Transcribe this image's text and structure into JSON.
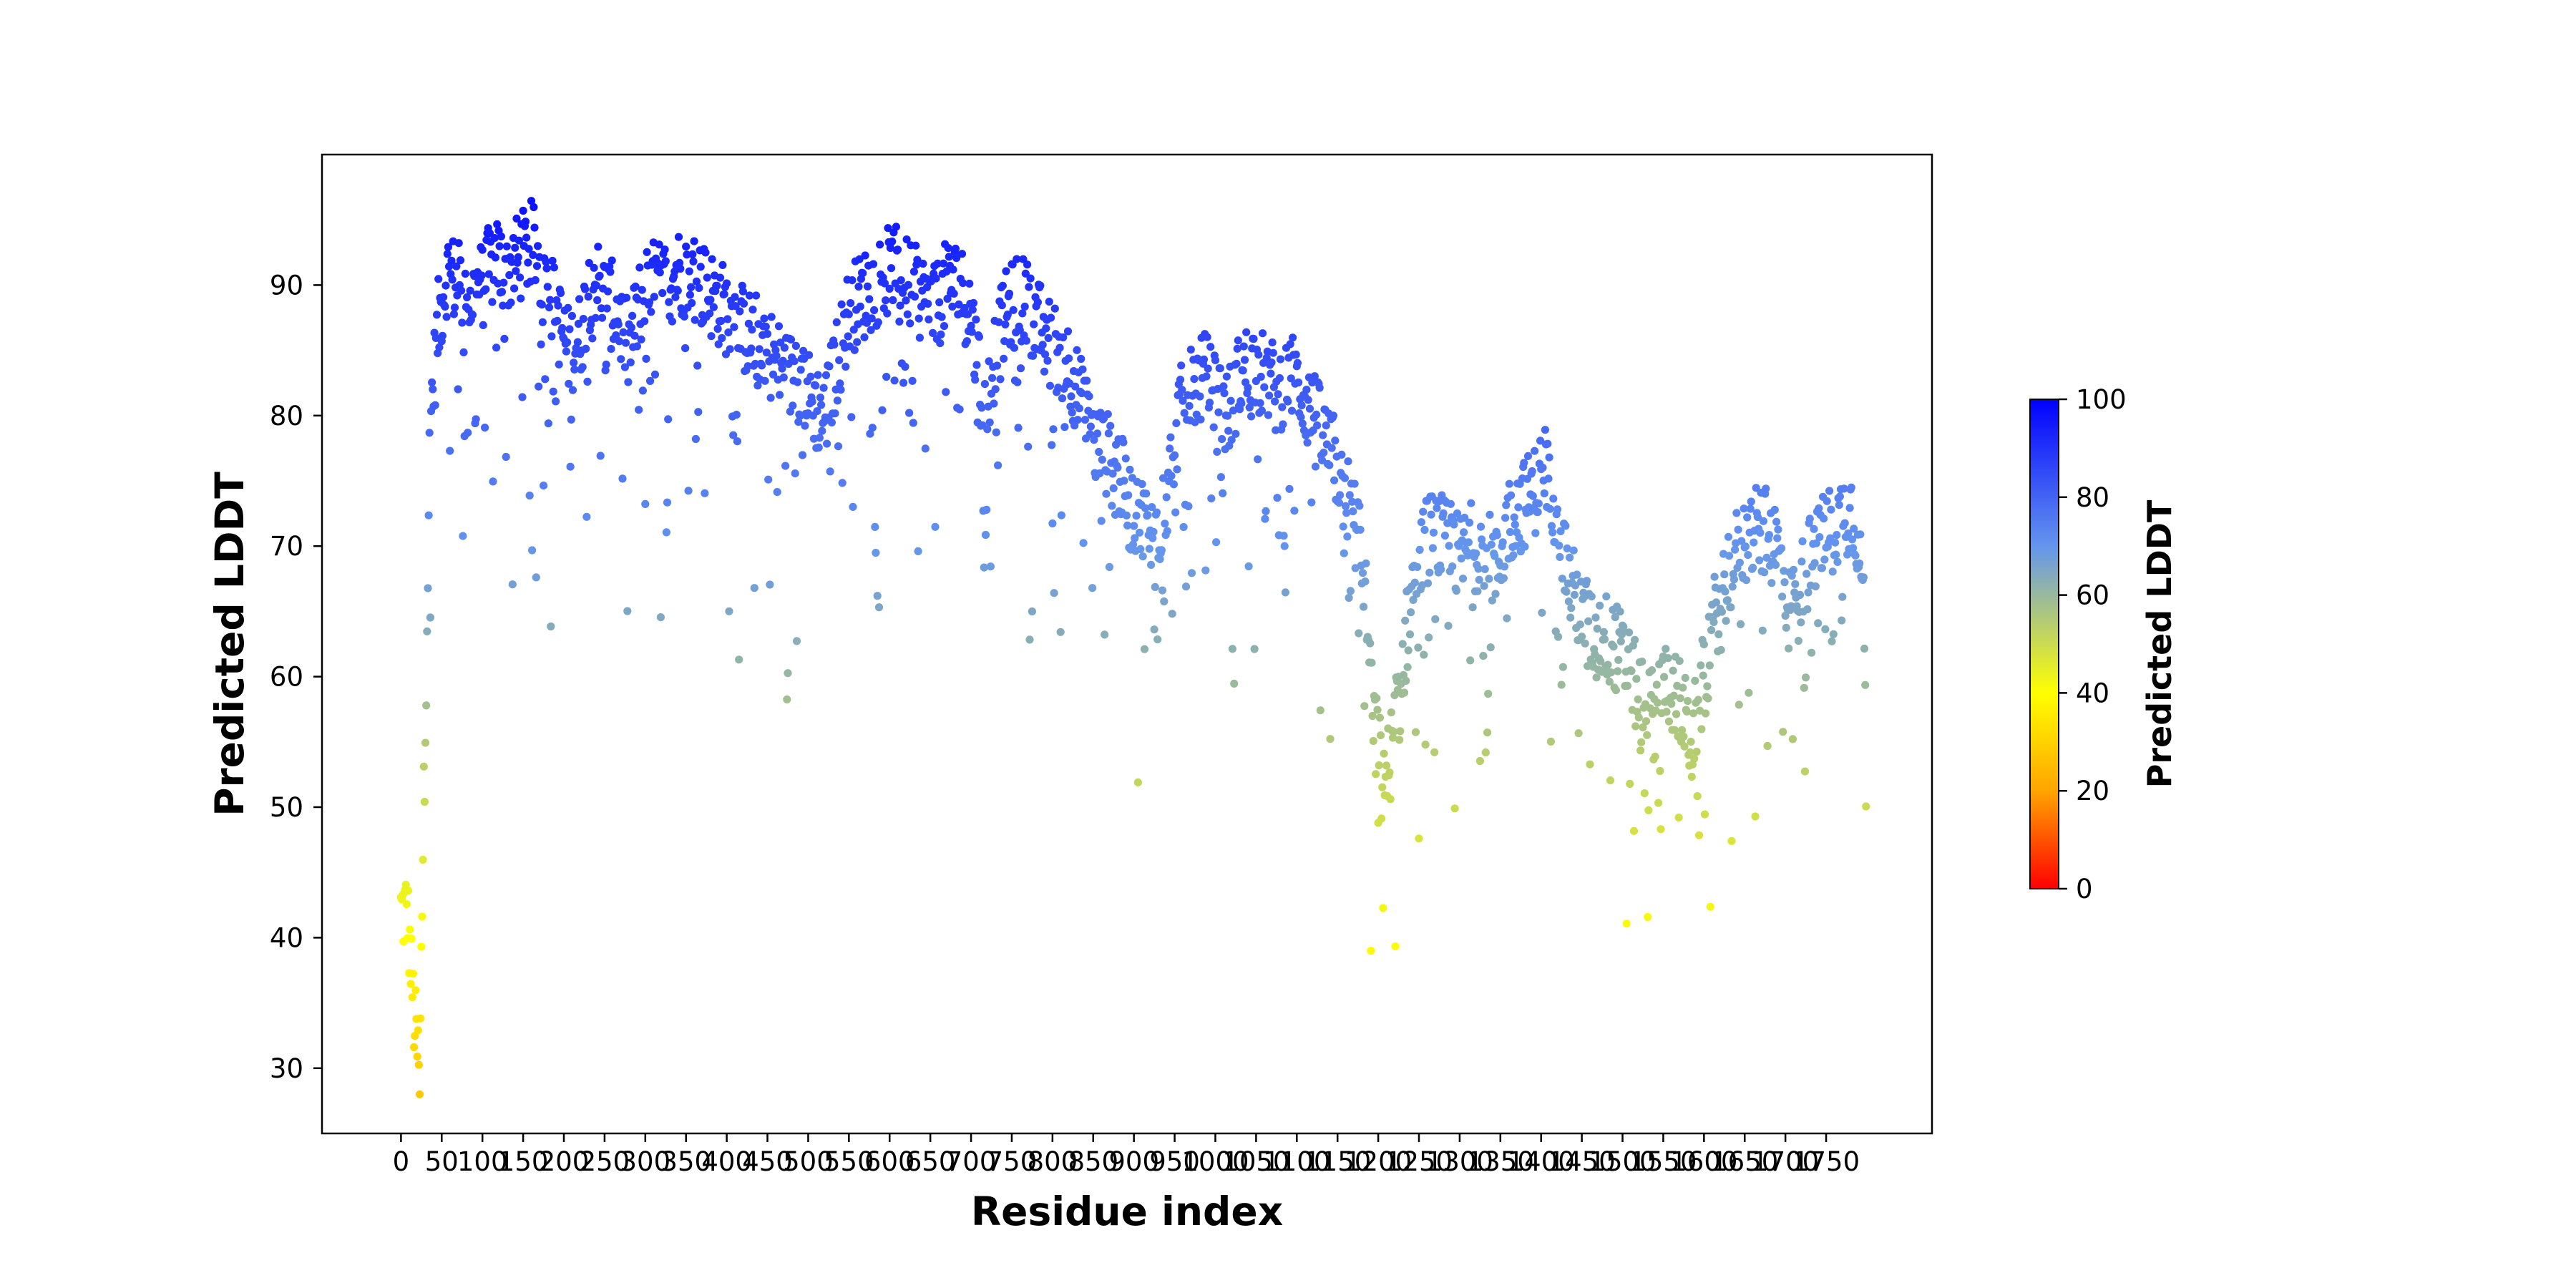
{
  "chart_data": {
    "type": "scatter",
    "title": "",
    "xlabel": "Residue index",
    "ylabel": "Predicted LDDT",
    "xlim": [
      -97,
      1880
    ],
    "ylim": [
      25,
      100
    ],
    "grid": false,
    "x_ticks": [
      0,
      50,
      100,
      150,
      200,
      250,
      300,
      350,
      400,
      450,
      500,
      550,
      600,
      650,
      700,
      750,
      800,
      850,
      900,
      950,
      1000,
      1050,
      1100,
      1150,
      1200,
      1250,
      1300,
      1350,
      1400,
      1450,
      1500,
      1550,
      1600,
      1650,
      1700,
      1750
    ],
    "x_tick_labels": [
      "0",
      "50",
      "100",
      "150",
      "200",
      "250",
      "300",
      "350",
      "400",
      "450",
      "500",
      "550",
      "600",
      "650",
      "700",
      "750",
      "800",
      "850",
      "900",
      "950",
      "1000",
      "1050",
      "1100",
      "1150",
      "1200",
      "1250",
      "1300",
      "1350",
      "1400",
      "1450",
      "1500",
      "1550",
      "1600",
      "1650",
      "1700",
      "1750"
    ],
    "y_ticks": [
      30,
      40,
      50,
      60,
      70,
      80,
      90
    ],
    "colorbar": {
      "label": "Predicted LDDT",
      "min": 0,
      "max": 100,
      "ticks": [
        0,
        20,
        40,
        60,
        80,
        100
      ],
      "colors": [
        "#ff0000",
        "#ffa500",
        "#ffff00",
        "#6495ed",
        "#0000ff"
      ],
      "stops": [
        0,
        0.2,
        0.4,
        0.7,
        1.0
      ],
      "legend_position": "right"
    },
    "series": [
      {
        "residue_range": [
          0,
          1799
        ],
        "profile": [
          [
            0,
            42
          ],
          [
            8,
            42
          ],
          [
            16,
            34
          ],
          [
            22,
            30
          ],
          [
            28,
            50
          ],
          [
            36,
            80
          ],
          [
            46,
            87
          ],
          [
            56,
            91
          ],
          [
            70,
            90
          ],
          [
            85,
            89
          ],
          [
            100,
            90
          ],
          [
            115,
            92
          ],
          [
            130,
            91
          ],
          [
            145,
            92
          ],
          [
            160,
            93
          ],
          [
            175,
            91
          ],
          [
            190,
            88
          ],
          [
            205,
            85
          ],
          [
            220,
            86
          ],
          [
            235,
            91
          ],
          [
            250,
            89
          ],
          [
            265,
            88
          ],
          [
            280,
            85
          ],
          [
            295,
            89
          ],
          [
            310,
            90
          ],
          [
            325,
            90
          ],
          [
            340,
            91
          ],
          [
            355,
            91
          ],
          [
            370,
            90
          ],
          [
            385,
            89
          ],
          [
            400,
            88
          ],
          [
            415,
            87
          ],
          [
            430,
            86
          ],
          [
            445,
            86
          ],
          [
            460,
            84
          ],
          [
            475,
            83
          ],
          [
            490,
            83
          ],
          [
            505,
            81
          ],
          [
            520,
            80
          ],
          [
            535,
            84
          ],
          [
            550,
            88
          ],
          [
            565,
            89
          ],
          [
            580,
            90
          ],
          [
            595,
            91
          ],
          [
            610,
            91
          ],
          [
            625,
            90
          ],
          [
            640,
            89
          ],
          [
            655,
            88
          ],
          [
            670,
            90
          ],
          [
            685,
            90
          ],
          [
            700,
            88
          ],
          [
            715,
            80
          ],
          [
            730,
            85
          ],
          [
            745,
            88
          ],
          [
            760,
            89
          ],
          [
            775,
            88
          ],
          [
            790,
            86
          ],
          [
            805,
            85
          ],
          [
            820,
            84
          ],
          [
            835,
            81
          ],
          [
            850,
            78
          ],
          [
            865,
            77
          ],
          [
            880,
            76
          ],
          [
            895,
            73
          ],
          [
            910,
            72
          ],
          [
            925,
            70
          ],
          [
            940,
            74
          ],
          [
            955,
            80
          ],
          [
            970,
            82
          ],
          [
            985,
            83
          ],
          [
            1000,
            82
          ],
          [
            1015,
            80
          ],
          [
            1030,
            83
          ],
          [
            1045,
            84
          ],
          [
            1060,
            83
          ],
          [
            1075,
            82
          ],
          [
            1090,
            83
          ],
          [
            1105,
            82
          ],
          [
            1120,
            80
          ],
          [
            1135,
            78
          ],
          [
            1150,
            76
          ],
          [
            1165,
            73
          ],
          [
            1180,
            70
          ],
          [
            1195,
            56
          ],
          [
            1210,
            52
          ],
          [
            1225,
            58
          ],
          [
            1240,
            66
          ],
          [
            1255,
            70
          ],
          [
            1270,
            71
          ],
          [
            1285,
            70
          ],
          [
            1300,
            69
          ],
          [
            1315,
            70
          ],
          [
            1330,
            70
          ],
          [
            1345,
            68
          ],
          [
            1360,
            72
          ],
          [
            1375,
            73
          ],
          [
            1390,
            74
          ],
          [
            1405,
            76
          ],
          [
            1420,
            73
          ],
          [
            1435,
            67
          ],
          [
            1450,
            65
          ],
          [
            1465,
            63
          ],
          [
            1480,
            63
          ],
          [
            1495,
            62
          ],
          [
            1510,
            60
          ],
          [
            1525,
            58
          ],
          [
            1540,
            57
          ],
          [
            1555,
            60
          ],
          [
            1570,
            58
          ],
          [
            1585,
            55
          ],
          [
            1600,
            60
          ],
          [
            1615,
            65
          ],
          [
            1630,
            68
          ],
          [
            1645,
            70
          ],
          [
            1660,
            71
          ],
          [
            1675,
            71
          ],
          [
            1690,
            70
          ],
          [
            1705,
            65
          ],
          [
            1720,
            67
          ],
          [
            1735,
            70
          ],
          [
            1750,
            71
          ],
          [
            1765,
            72
          ],
          [
            1780,
            73
          ],
          [
            1795,
            70
          ],
          [
            1799,
            52
          ]
        ]
      }
    ]
  }
}
